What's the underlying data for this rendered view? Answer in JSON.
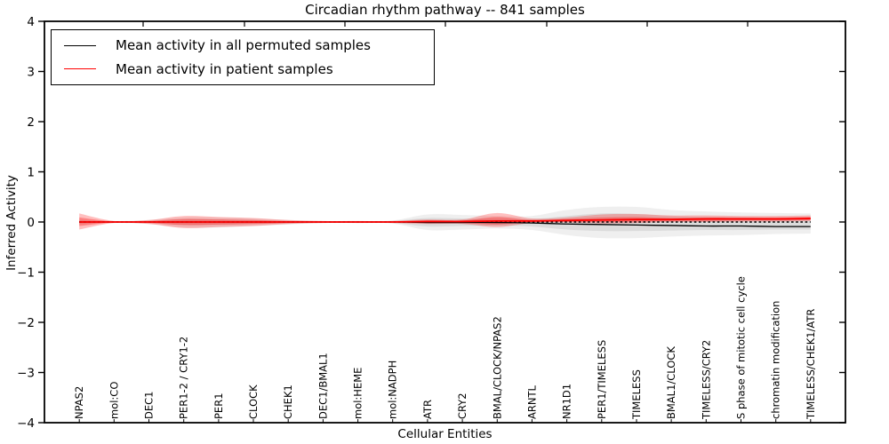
{
  "title": "Circadian rhythm pathway -- 841 samples",
  "axis": {
    "xlabel": "Cellular Entities",
    "ylabel": "Inferred Activity"
  },
  "legend": [
    {
      "label": "Mean activity in all permuted samples",
      "color": "#000000"
    },
    {
      "label": "Mean activity in patient samples",
      "color": "#ff0000"
    }
  ],
  "chart_data": {
    "type": "line",
    "title": "Circadian rhythm pathway -- 841 samples",
    "xlabel": "Cellular Entities",
    "ylabel": "Inferred Activity",
    "ylim": [
      -4,
      4
    ],
    "ytick_labels": [
      "4",
      "3",
      "2",
      "1",
      "0",
      "−1",
      "−2",
      "−3",
      "−4"
    ],
    "ytick_values": [
      4,
      3,
      2,
      1,
      0,
      -1,
      -2,
      -3,
      -4
    ],
    "grid": false,
    "legend_position": "upper left",
    "categories": [
      "NPAS2",
      "mol:CO",
      "DEC1",
      "PER1-2 / CRY1-2",
      "PER1",
      "CLOCK",
      "CHEK1",
      "DEC1/BMAL1",
      "mol:HEME",
      "mol:NADPH",
      "ATR",
      "CRY2",
      "BMAL/CLOCK/NPAS2",
      "ARNTL",
      "NR1D1",
      "PER1/TIMELESS",
      "TIMELESS",
      "BMAL1/CLOCK",
      "TIMELESS/CRY2",
      "S phase of mitotic cell cycle",
      "chromatin modification",
      "TIMELESS/CHEK1/ATR"
    ],
    "series": [
      {
        "name": "Mean activity in all permuted samples",
        "color": "#000000",
        "style": "solid",
        "width": 1.3,
        "values": [
          0,
          0,
          0,
          0,
          0,
          0,
          0,
          0,
          0,
          0,
          -0.01,
          -0.01,
          -0.01,
          -0.02,
          -0.04,
          -0.05,
          -0.06,
          -0.07,
          -0.08,
          -0.08,
          -0.09,
          -0.09
        ]
      },
      {
        "name": "Mean activity in patient samples",
        "color": "#ff0000",
        "style": "solid",
        "width": 1.8,
        "values": [
          0,
          0,
          0,
          0,
          0,
          0,
          0,
          0,
          0,
          0,
          0.01,
          0.01,
          0.02,
          0.02,
          0.03,
          0.04,
          0.05,
          0.05,
          0.06,
          0.06,
          0.06,
          0.07
        ]
      },
      {
        "name": "zero-reference",
        "color": "#000000",
        "style": "dashed",
        "width": 1.6,
        "values": [
          0,
          0,
          0,
          0,
          0,
          0,
          0,
          0,
          0,
          0,
          0,
          0,
          0,
          0,
          0,
          0,
          0,
          0,
          0,
          0,
          0,
          0
        ]
      }
    ],
    "bands": [
      {
        "name": "permuted-range-outer",
        "color": "#999999",
        "opacity": 0.16,
        "upper": [
          0.05,
          0.02,
          0.04,
          0.09,
          0.09,
          0.07,
          0.04,
          0.02,
          0.02,
          0.03,
          0.15,
          0.14,
          0.12,
          0.12,
          0.24,
          0.3,
          0.3,
          0.24,
          0.21,
          0.19,
          0.18,
          0.17
        ],
        "lower": [
          -0.05,
          -0.02,
          -0.04,
          -0.11,
          -0.11,
          -0.08,
          -0.05,
          -0.02,
          -0.02,
          -0.03,
          -0.16,
          -0.15,
          -0.13,
          -0.16,
          -0.26,
          -0.32,
          -0.32,
          -0.29,
          -0.27,
          -0.26,
          -0.24,
          -0.23
        ]
      },
      {
        "name": "permuted-range-inner",
        "color": "#999999",
        "opacity": 0.22,
        "upper": [
          0.03,
          0.01,
          0.02,
          0.05,
          0.05,
          0.04,
          0.02,
          0.01,
          0.01,
          0.02,
          0.08,
          0.07,
          0.06,
          0.06,
          0.12,
          0.17,
          0.16,
          0.12,
          0.1,
          0.09,
          0.08,
          0.08
        ],
        "lower": [
          -0.03,
          -0.01,
          -0.02,
          -0.06,
          -0.06,
          -0.04,
          -0.03,
          -0.01,
          -0.01,
          -0.02,
          -0.09,
          -0.08,
          -0.07,
          -0.09,
          -0.15,
          -0.18,
          -0.18,
          -0.17,
          -0.16,
          -0.16,
          -0.15,
          -0.15
        ]
      },
      {
        "name": "patient-range-outer",
        "color": "#ff0000",
        "opacity": 0.25,
        "upper": [
          0.17,
          0.02,
          0.04,
          0.12,
          0.1,
          0.08,
          0.04,
          0.02,
          0.02,
          0.02,
          0.05,
          0.05,
          0.18,
          0.07,
          0.09,
          0.15,
          0.16,
          0.13,
          0.13,
          0.12,
          0.12,
          0.13
        ],
        "lower": [
          -0.15,
          -0.02,
          -0.04,
          -0.12,
          -0.1,
          -0.08,
          -0.04,
          -0.02,
          -0.02,
          -0.02,
          -0.04,
          -0.04,
          -0.1,
          -0.02,
          -0.01,
          -0.03,
          -0.02,
          0.0,
          0.0,
          0.01,
          0.01,
          0.02
        ]
      },
      {
        "name": "patient-range-inner",
        "color": "#ff0000",
        "opacity": 0.3,
        "upper": [
          0.09,
          0.01,
          0.02,
          0.06,
          0.05,
          0.04,
          0.02,
          0.01,
          0.01,
          0.01,
          0.03,
          0.03,
          0.1,
          0.04,
          0.06,
          0.09,
          0.1,
          0.08,
          0.09,
          0.09,
          0.09,
          0.1
        ],
        "lower": [
          -0.08,
          -0.01,
          -0.02,
          -0.06,
          -0.05,
          -0.04,
          -0.02,
          -0.01,
          -0.01,
          -0.01,
          -0.02,
          -0.02,
          -0.05,
          0.0,
          0.01,
          0.0,
          0.01,
          0.02,
          0.02,
          0.03,
          0.03,
          0.04
        ]
      }
    ]
  }
}
